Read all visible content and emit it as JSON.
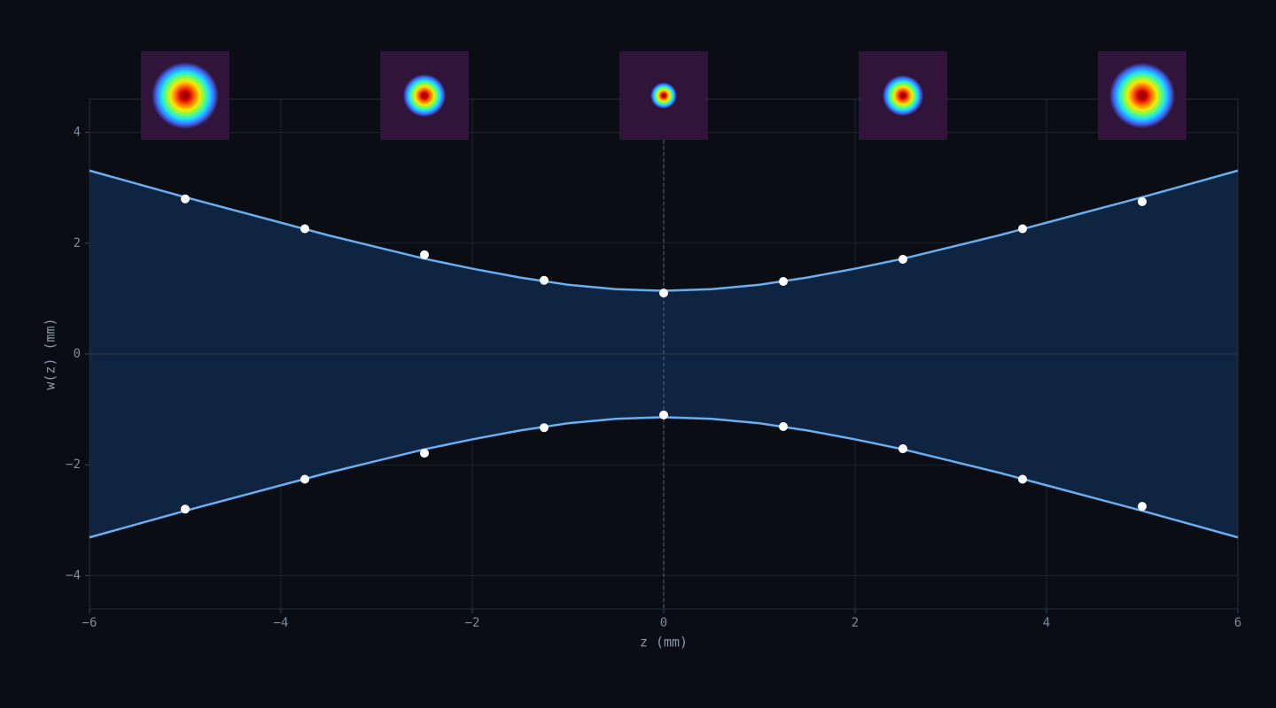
{
  "chart_data": {
    "type": "beam",
    "xlabel": "z (mm)",
    "ylabel": "w(z) (mm)",
    "xlim": [
      -6,
      6
    ],
    "ylim": [
      -4.6,
      4.6
    ],
    "xticks": [
      {
        "value": -6,
        "label": "−6"
      },
      {
        "value": -4,
        "label": "−4"
      },
      {
        "value": -2,
        "label": "−2"
      },
      0,
      2,
      4,
      6
    ],
    "yticks": [
      4,
      2,
      0,
      {
        "value": -2,
        "label": "−2"
      },
      {
        "value": -4,
        "label": "−4"
      }
    ],
    "grid": true,
    "x": [
      -6,
      -5.5,
      -5,
      -4.5,
      -4,
      -3.5,
      -3,
      -2.5,
      -2,
      -1.5,
      -1,
      -0.5,
      0,
      0.5,
      1,
      1.5,
      2,
      2.5,
      3,
      3.5,
      4,
      4.5,
      5,
      5.5,
      6
    ],
    "series": [
      {
        "color": "#6aaef0",
        "values": [
          3.31,
          3.07,
          2.83,
          2.6,
          2.37,
          2.14,
          1.93,
          1.72,
          1.54,
          1.38,
          1.25,
          1.17,
          1.14,
          1.17,
          1.25,
          1.38,
          1.54,
          1.72,
          1.93,
          2.14,
          2.37,
          2.6,
          2.83,
          3.07,
          3.31
        ]
      },
      {
        "color": "#6aaef0",
        "values": [
          -3.31,
          -3.07,
          -2.83,
          -2.6,
          -2.37,
          -2.14,
          -1.93,
          -1.72,
          -1.54,
          -1.38,
          -1.25,
          -1.17,
          -1.14,
          -1.17,
          -1.25,
          -1.38,
          -1.54,
          -1.72,
          -1.93,
          -2.14,
          -2.37,
          -2.6,
          -2.83,
          -3.07,
          -3.31
        ]
      }
    ],
    "fill_color": "#0f2440",
    "points": {
      "color": "#ffffff",
      "x": [
        -5,
        -3.75,
        -2.5,
        -1.25,
        0,
        1.25,
        2.5,
        3.75,
        5
      ],
      "series": [
        {
          "values": [
            2.8,
            2.26,
            1.79,
            1.33,
            1.1,
            1.31,
            1.71,
            2.26,
            2.75
          ]
        },
        {
          "values": [
            -2.8,
            -2.26,
            -1.79,
            -1.33,
            -1.1,
            -1.31,
            -1.71,
            -2.26,
            -2.75
          ]
        }
      ]
    },
    "waist_z": 0,
    "profile_z": [
      -5,
      -2.5,
      0,
      2.5,
      5
    ],
    "colormap": [
      "#7a0000",
      "#d40000",
      "#ff6a00",
      "#ffe600",
      "#6fff5a",
      "#19e0ff",
      "#3f6cff",
      "#30143a"
    ]
  }
}
